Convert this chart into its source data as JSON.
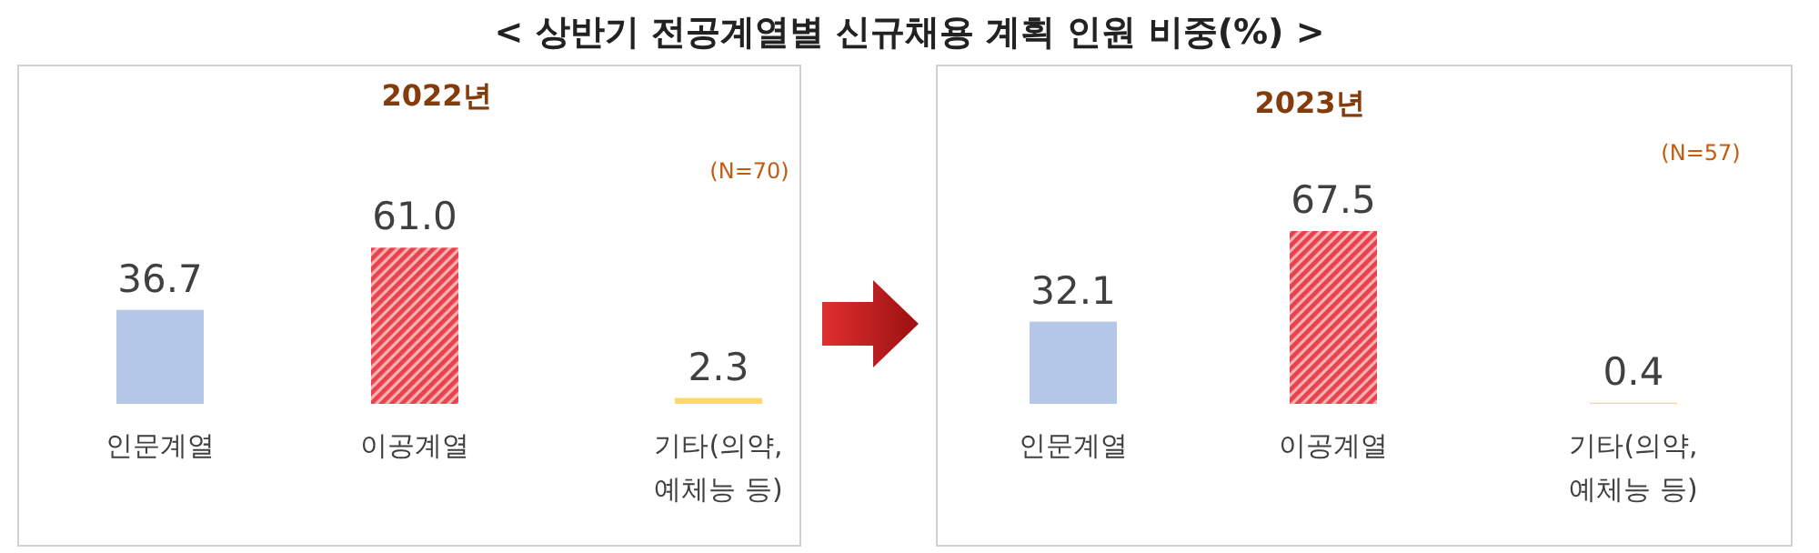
{
  "chart_data": [
    {
      "type": "bar",
      "title": "< 상반기 전공계열별 신규채용 계획 인원 비중(%) >",
      "subtitle": "2022년",
      "annotations": [
        "(N=70)"
      ],
      "categories": [
        "인문계열",
        "이공계열",
        "기타(의약, 예체능 등)"
      ],
      "values": [
        36.7,
        61.0,
        2.3
      ],
      "value_labels": [
        "36.7",
        "61.0",
        "2.3"
      ],
      "colors": [
        "#b4c7e7",
        "#e8424c",
        "#ffd966"
      ]
    },
    {
      "type": "bar",
      "subtitle": "2023년",
      "annotations": [
        "(N=57)"
      ],
      "categories": [
        "인문계열",
        "이공계열",
        "기타(의약, 예체능 등)"
      ],
      "values": [
        32.1,
        67.5,
        0.4
      ],
      "value_labels": [
        "32.1",
        "67.5",
        "0.4"
      ],
      "colors": [
        "#b4c7e7",
        "#e8424c",
        "#ffd966"
      ]
    }
  ]
}
